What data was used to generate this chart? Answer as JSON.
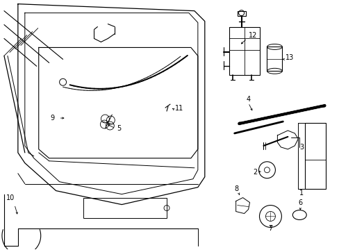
{
  "bg_color": "#ffffff",
  "line_color": "#000000",
  "fig_width": 4.89,
  "fig_height": 3.6,
  "dpi": 100,
  "fs": 7.0
}
